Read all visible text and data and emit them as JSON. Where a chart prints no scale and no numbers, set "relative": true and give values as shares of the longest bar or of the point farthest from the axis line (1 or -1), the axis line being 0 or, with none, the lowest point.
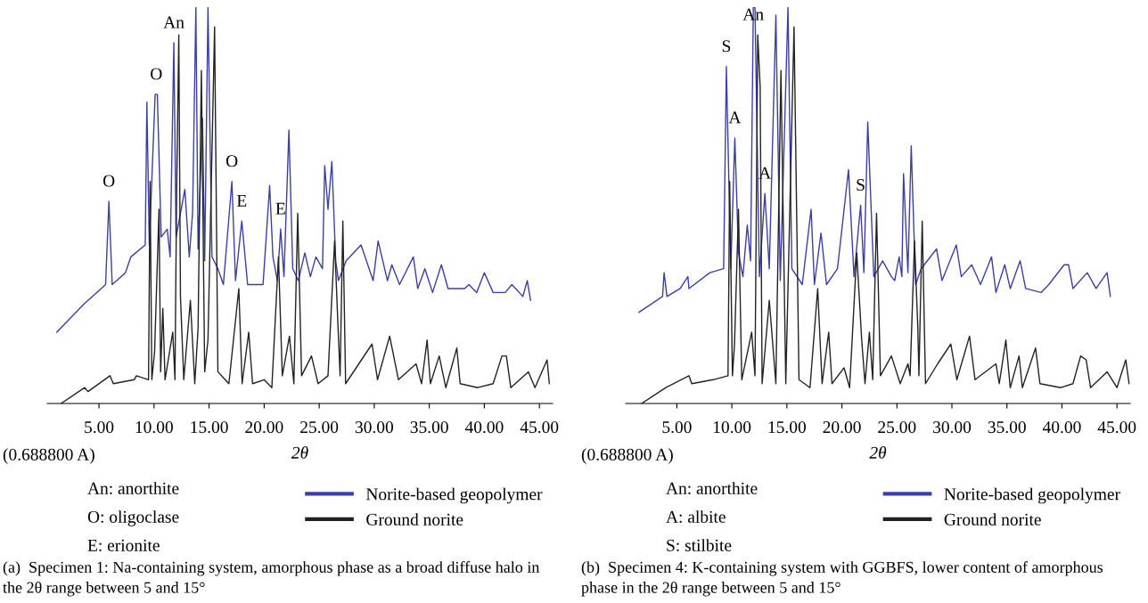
{
  "chart_data": [
    {
      "type": "line",
      "relative": true,
      "xlabel": "2θ",
      "legend": "bottom",
      "grid": false,
      "marker": "none",
      "line_style": "solid",
      "xlim": [
        0.3,
        46.2
      ],
      "xticks": [
        {
          "value": 5,
          "label": "5.00"
        },
        {
          "value": 10,
          "label": "10.00"
        },
        {
          "value": 15,
          "label": "15.00"
        },
        {
          "value": 20,
          "label": "20.00"
        },
        {
          "value": 25,
          "label": "25.00"
        },
        {
          "value": 30,
          "label": "30.00"
        },
        {
          "value": 35,
          "label": "35.00"
        },
        {
          "value": 40,
          "label": "40.00"
        },
        {
          "value": 45,
          "label": "45.00"
        }
      ],
      "series": [
        {
          "name": "Norite-based geopolymer",
          "color": "#3a3fa8",
          "x": [
            1.16,
            3.6,
            5.2,
            5.6,
            5.9,
            6.2,
            7.4,
            7.9,
            9.2,
            9.35,
            9.57,
            10.1,
            10.3,
            10.65,
            11.2,
            11.46,
            11.8,
            12.0,
            12.2,
            12.8,
            13.2,
            13.5,
            13.8,
            14.0,
            14.4,
            14.6,
            14.9,
            15.26,
            15.8,
            16.3,
            17.07,
            17.4,
            17.97,
            18.5,
            19.9,
            20.5,
            20.8,
            21.2,
            21.5,
            21.8,
            22.25,
            22.6,
            23.1,
            23.7,
            24.2,
            24.7,
            25.3,
            25.5,
            25.8,
            26.15,
            26.5,
            26.75,
            27.45,
            28.8,
            29.9,
            30.35,
            31.2,
            31.6,
            32.3,
            33.55,
            33.95,
            34.6,
            35.3,
            36.1,
            36.7,
            38.2,
            38.6,
            39.3,
            40.0,
            40.8,
            41.9,
            42.5,
            43.5,
            43.9,
            44.2
          ],
          "values": [
            0.18,
            0.25,
            0.29,
            0.3,
            0.51,
            0.3,
            0.33,
            0.37,
            0.4,
            0.76,
            0.4,
            0.78,
            0.78,
            0.42,
            0.44,
            0.37,
            0.91,
            0.42,
            0.45,
            0.54,
            0.37,
            0.48,
            1.0,
            0.39,
            0.72,
            0.36,
            1.0,
            0.37,
            0.34,
            0.3,
            0.56,
            0.31,
            0.46,
            0.3,
            0.3,
            0.55,
            0.37,
            0.31,
            0.44,
            0.32,
            0.69,
            0.34,
            0.31,
            0.38,
            0.32,
            0.37,
            0.34,
            0.6,
            0.49,
            0.61,
            0.36,
            0.31,
            0.36,
            0.4,
            0.31,
            0.41,
            0.31,
            0.35,
            0.3,
            0.37,
            0.29,
            0.34,
            0.28,
            0.35,
            0.29,
            0.29,
            0.3,
            0.28,
            0.33,
            0.28,
            0.28,
            0.3,
            0.27,
            0.31,
            0.26
          ]
        },
        {
          "name": "Ground norite",
          "color": "#222222",
          "x": [
            1.56,
            3.7,
            4.0,
            6.0,
            6.3,
            8.2,
            8.4,
            9.5,
            9.64,
            9.8,
            10.05,
            10.45,
            10.6,
            10.8,
            11.0,
            11.7,
            11.9,
            12.05,
            12.25,
            12.4,
            12.7,
            13.3,
            13.7,
            14.0,
            14.3,
            14.6,
            14.9,
            15.5,
            15.8,
            16.8,
            17.7,
            18.0,
            18.6,
            18.95,
            20.0,
            20.7,
            21.3,
            21.65,
            22.3,
            22.7,
            23.05,
            23.4,
            24.3,
            24.9,
            25.8,
            26.4,
            26.7,
            26.9,
            27.15,
            27.4,
            28.6,
            29.8,
            30.3,
            31.4,
            32.2,
            33.8,
            34.3,
            34.8,
            35.1,
            35.9,
            36.5,
            37.5,
            37.8,
            39.4,
            40.8,
            41.6,
            42.0,
            42.4,
            44.0,
            44.6,
            45.7,
            45.9
          ],
          "values": [
            0.0,
            0.04,
            0.03,
            0.07,
            0.05,
            0.06,
            0.07,
            0.06,
            0.56,
            0.06,
            0.13,
            0.49,
            0.08,
            0.24,
            0.06,
            0.18,
            0.06,
            0.53,
            0.93,
            0.27,
            0.06,
            0.26,
            0.05,
            0.19,
            0.84,
            0.08,
            0.16,
            0.95,
            0.08,
            0.05,
            0.29,
            0.05,
            0.18,
            0.05,
            0.06,
            0.04,
            0.37,
            0.07,
            0.17,
            0.05,
            0.48,
            0.07,
            0.12,
            0.05,
            0.07,
            0.41,
            0.2,
            0.07,
            0.46,
            0.05,
            0.1,
            0.15,
            0.06,
            0.17,
            0.06,
            0.1,
            0.05,
            0.16,
            0.05,
            0.12,
            0.04,
            0.14,
            0.05,
            0.04,
            0.05,
            0.12,
            0.12,
            0.04,
            0.08,
            0.04,
            0.11,
            0.05
          ]
        }
      ],
      "annotations": [
        {
          "text": "O",
          "x": 5.9,
          "y": 0.51
        },
        {
          "text": "O",
          "x": 10.2,
          "y": 0.78
        },
        {
          "text": "An",
          "x": 11.8,
          "y": 0.91
        },
        {
          "text": "O",
          "x": 17.07,
          "y": 0.56
        },
        {
          "text": "E",
          "x": 17.97,
          "y": 0.46
        },
        {
          "text": "E",
          "x": 21.5,
          "y": 0.44
        },
        "(0.688800 A)",
        "An: anorthite",
        "O: oligoclase",
        "E: erionite",
        "(a)  Specimen 1: Na-containing system, amorphous phase as a broad diffuse halo in the 2θ range between 5 and 15°"
      ]
    },
    {
      "type": "line",
      "relative": true,
      "xlabel": "2θ",
      "legend": "bottom",
      "grid": false,
      "marker": "none",
      "line_style": "solid",
      "xlim": [
        0.35,
        46.2
      ],
      "xticks": [
        {
          "value": 5,
          "label": "5.00"
        },
        {
          "value": 10,
          "label": "10.00"
        },
        {
          "value": 15,
          "label": "15.00"
        },
        {
          "value": 20,
          "label": "20.00"
        },
        {
          "value": 25,
          "label": "25.00"
        },
        {
          "value": 30,
          "label": "30.00"
        },
        {
          "value": 35,
          "label": "35.00"
        },
        {
          "value": 40,
          "label": "40.00"
        },
        {
          "value": 45,
          "label": "45.00"
        }
      ],
      "series": [
        {
          "name": "Norite-based geopolymer",
          "color": "#3a3fa8",
          "x": [
            1.55,
            3.7,
            3.84,
            4.1,
            5.3,
            6.0,
            6.1,
            8.0,
            9.25,
            9.5,
            9.9,
            10.27,
            10.6,
            11.0,
            11.4,
            11.7,
            11.95,
            12.1,
            12.5,
            13.0,
            13.4,
            14.0,
            14.4,
            15.1,
            15.45,
            16.4,
            17.2,
            17.5,
            18.1,
            18.6,
            19.6,
            20.6,
            21.1,
            21.7,
            22.0,
            22.35,
            22.9,
            23.7,
            24.5,
            24.8,
            25.2,
            25.45,
            25.6,
            26.0,
            26.3,
            26.7,
            27.2,
            28.6,
            29.1,
            30.4,
            30.85,
            31.8,
            32.6,
            33.6,
            34.0,
            34.8,
            35.3,
            36.2,
            36.7,
            38.1,
            38.8,
            40.2,
            40.6,
            41.0,
            42.3,
            43.1,
            44.1,
            44.4
          ],
          "values": [
            0.23,
            0.27,
            0.33,
            0.27,
            0.29,
            0.32,
            0.29,
            0.33,
            0.34,
            0.85,
            0.34,
            0.67,
            0.38,
            0.32,
            0.45,
            0.36,
            1.0,
            1.0,
            0.32,
            0.53,
            0.34,
            0.98,
            0.31,
            1.0,
            0.34,
            0.3,
            0.49,
            0.3,
            0.43,
            0.3,
            0.34,
            0.59,
            0.32,
            0.5,
            0.33,
            0.71,
            0.32,
            0.36,
            0.32,
            0.31,
            0.37,
            0.32,
            0.58,
            0.33,
            0.65,
            0.3,
            0.34,
            0.39,
            0.31,
            0.4,
            0.32,
            0.35,
            0.3,
            0.37,
            0.28,
            0.35,
            0.29,
            0.36,
            0.29,
            0.28,
            0.3,
            0.35,
            0.35,
            0.29,
            0.33,
            0.29,
            0.33,
            0.27
          ]
        },
        {
          "name": "Ground norite",
          "color": "#222222",
          "x": [
            1.8,
            4.0,
            6.1,
            6.35,
            8.3,
            9.65,
            9.8,
            10.05,
            10.24,
            10.6,
            10.9,
            11.8,
            12.1,
            12.35,
            12.57,
            12.75,
            13.4,
            14.0,
            14.46,
            14.9,
            15.65,
            16.1,
            17.1,
            17.8,
            18.2,
            18.8,
            19.1,
            20.2,
            20.7,
            21.35,
            21.8,
            22.1,
            22.5,
            22.8,
            23.15,
            23.5,
            24.5,
            25.3,
            26.0,
            26.2,
            26.6,
            26.9,
            27.0,
            27.3,
            27.6,
            28.7,
            29.9,
            30.45,
            31.6,
            32.1,
            34.0,
            34.3,
            34.9,
            35.3,
            36.1,
            36.4,
            37.6,
            38.0,
            39.9,
            41.0,
            41.7,
            42.2,
            42.6,
            44.1,
            45.0,
            45.8,
            46.1
          ],
          "values": [
            0.0,
            0.04,
            0.07,
            0.05,
            0.06,
            0.07,
            0.56,
            0.07,
            0.15,
            0.49,
            0.06,
            0.18,
            0.07,
            0.93,
            0.8,
            0.05,
            0.26,
            0.05,
            0.84,
            0.05,
            0.95,
            0.06,
            0.04,
            0.29,
            0.05,
            0.18,
            0.05,
            0.09,
            0.04,
            0.38,
            0.16,
            0.05,
            0.18,
            0.06,
            0.48,
            0.07,
            0.12,
            0.05,
            0.1,
            0.07,
            0.41,
            0.19,
            0.07,
            0.46,
            0.05,
            0.1,
            0.15,
            0.06,
            0.17,
            0.06,
            0.1,
            0.05,
            0.16,
            0.04,
            0.12,
            0.04,
            0.14,
            0.05,
            0.04,
            0.05,
            0.12,
            0.11,
            0.04,
            0.08,
            0.04,
            0.11,
            0.05
          ]
        }
      ],
      "annotations": [
        {
          "text": "S",
          "x": 9.5,
          "y": 0.85
        },
        {
          "text": "A",
          "x": 10.27,
          "y": 0.67
        },
        {
          "text": "An",
          "x": 11.95,
          "y": 0.93
        },
        {
          "text": "A",
          "x": 13.0,
          "y": 0.53
        },
        {
          "text": "S",
          "x": 21.7,
          "y": 0.5
        },
        "(0.688800 A)",
        "An: anorthite",
        "A: albite",
        "S: stilbite",
        "(b)  Specimen 4: K-containing system with GGBFS, lower content of amorphous phase in the 2θ range between 5 and 15°"
      ]
    }
  ]
}
